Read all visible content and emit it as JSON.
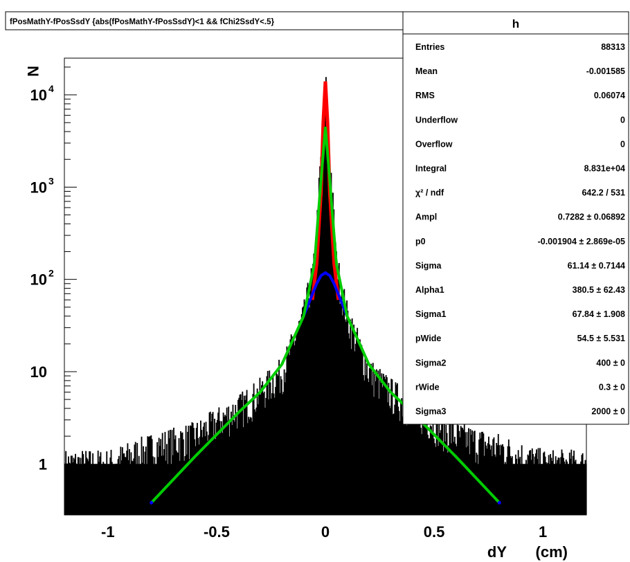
{
  "chart_data": {
    "type": "area",
    "title": "fPosMathY-fPosSsdY {abs(fPosMathY-fPosSsdY)<1 && fChi2SsdY<.5}",
    "xlabel": "dY",
    "xunit": "(cm)",
    "ylabel": "N",
    "xlim": [
      -1.2,
      1.2
    ],
    "ylim": [
      0.28,
      25000
    ],
    "yscale": "log",
    "grid": false,
    "x_ticks": [
      {
        "value": -1,
        "label": "-1"
      },
      {
        "value": -0.5,
        "label": "-0.5"
      },
      {
        "value": 0,
        "label": "0"
      },
      {
        "value": 0.5,
        "label": "0.5"
      },
      {
        "value": 1,
        "label": "1"
      }
    ],
    "y_ticks": [
      {
        "value": 1,
        "label": "1"
      },
      {
        "value": 10,
        "label": "10"
      },
      {
        "value": 100,
        "label": "10",
        "exp": "2"
      },
      {
        "value": 1000,
        "label": "10",
        "exp": "3"
      },
      {
        "value": 10000,
        "label": "10",
        "exp": "4"
      }
    ],
    "histogram": {
      "name": "h",
      "color": "#000000",
      "x": [
        -1.2,
        -1.0,
        -0.8,
        -0.6,
        -0.4,
        -0.3,
        -0.2,
        -0.1,
        -0.05,
        0,
        0.05,
        0.1,
        0.2,
        0.3,
        0.4,
        0.6,
        0.8,
        1.0,
        1.2
      ],
      "y": [
        1,
        1,
        1.5,
        2,
        4,
        6,
        10,
        40,
        150,
        14000,
        150,
        40,
        10,
        6,
        4,
        2,
        1.5,
        1,
        1
      ]
    },
    "fits": [
      {
        "color": "#ff0000",
        "x": [
          -0.06,
          -0.04,
          -0.02,
          -0.01,
          0,
          0.01,
          0.02,
          0.04,
          0.06
        ],
        "y": [
          60,
          150,
          900,
          5000,
          14000,
          5000,
          900,
          150,
          60
        ]
      },
      {
        "color": "#0000ff",
        "x": [
          -0.1,
          -0.07,
          -0.04,
          -0.02,
          0,
          0.02,
          0.04,
          0.07,
          0.1
        ],
        "y": [
          40,
          60,
          90,
          110,
          118,
          110,
          90,
          60,
          40
        ]
      },
      {
        "color": "#00cc00",
        "x": [
          -0.8,
          -0.6,
          -0.4,
          -0.3,
          -0.2,
          -0.1,
          -0.05,
          -0.02,
          0,
          0.02,
          0.05,
          0.1,
          0.2,
          0.3,
          0.4,
          0.6,
          0.8
        ],
        "y": [
          0.38,
          1.2,
          3.6,
          6,
          12,
          40,
          150,
          1200,
          4500,
          1200,
          150,
          40,
          12,
          6,
          3.6,
          1.2,
          0.38
        ]
      }
    ],
    "stats": {
      "title": "h",
      "rows": [
        {
          "label": "Entries",
          "value": "88313"
        },
        {
          "label": "Mean",
          "value": "-0.001585"
        },
        {
          "label": "RMS",
          "value": "0.06074"
        },
        {
          "label": "Underflow",
          "value": "0"
        },
        {
          "label": "Overflow",
          "value": "0"
        },
        {
          "label": "Integral",
          "value": "8.831e+04"
        },
        {
          "label": "χ² / ndf",
          "value": "642.2 / 531"
        },
        {
          "label": "Ampl",
          "value": "0.7282 ± 0.06892"
        },
        {
          "label": "p0",
          "value": "-0.001904 ± 2.869e-05"
        },
        {
          "label": "Sigma",
          "value": "61.14 ± 0.7144"
        },
        {
          "label": "Alpha1",
          "value": "380.5 ± 62.43"
        },
        {
          "label": "Sigma1",
          "value": "67.84 ± 1.908"
        },
        {
          "label": "pWide",
          "value": "54.5 ± 5.531"
        },
        {
          "label": "Sigma2",
          "value": "400 ±   0"
        },
        {
          "label": "rWide",
          "value": "0.3 ±   0"
        },
        {
          "label": "Sigma3",
          "value": "2000 ±   0"
        }
      ]
    }
  }
}
